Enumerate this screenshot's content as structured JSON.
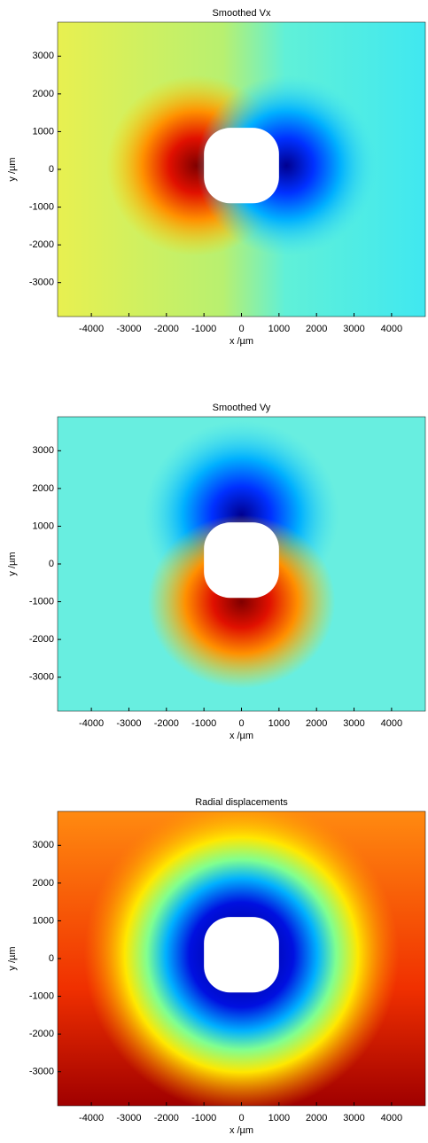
{
  "chart_data": [
    {
      "type": "heatmap",
      "title": "Smoothed Vx",
      "xlabel": "x /µm",
      "ylabel": "y /µm",
      "xlim": [
        -4900,
        4900
      ],
      "ylim": [
        -3900,
        3900
      ],
      "xticks": [
        -4000,
        -3000,
        -2000,
        -1000,
        0,
        1000,
        2000,
        3000,
        4000
      ],
      "yticks": [
        -3000,
        -2000,
        -1000,
        0,
        1000,
        2000,
        3000
      ]
    },
    {
      "type": "heatmap",
      "title": "Smoothed Vy",
      "xlabel": "x /µm",
      "ylabel": "y /µm",
      "xlim": [
        -4900,
        4900
      ],
      "ylim": [
        -3900,
        3900
      ],
      "xticks": [
        -4000,
        -3000,
        -2000,
        -1000,
        0,
        1000,
        2000,
        3000,
        4000
      ],
      "yticks": [
        -3000,
        -2000,
        -1000,
        0,
        1000,
        2000,
        3000
      ]
    },
    {
      "type": "heatmap",
      "title": "Radial displacements",
      "xlabel": "x /µm",
      "ylabel": "y /µm",
      "xlim": [
        -4900,
        4900
      ],
      "ylim": [
        -3900,
        3900
      ],
      "xticks": [
        -4000,
        -3000,
        -2000,
        -1000,
        0,
        1000,
        2000,
        3000,
        4000
      ],
      "yticks": [
        -3000,
        -2000,
        -1000,
        0,
        1000,
        2000,
        3000
      ]
    }
  ]
}
